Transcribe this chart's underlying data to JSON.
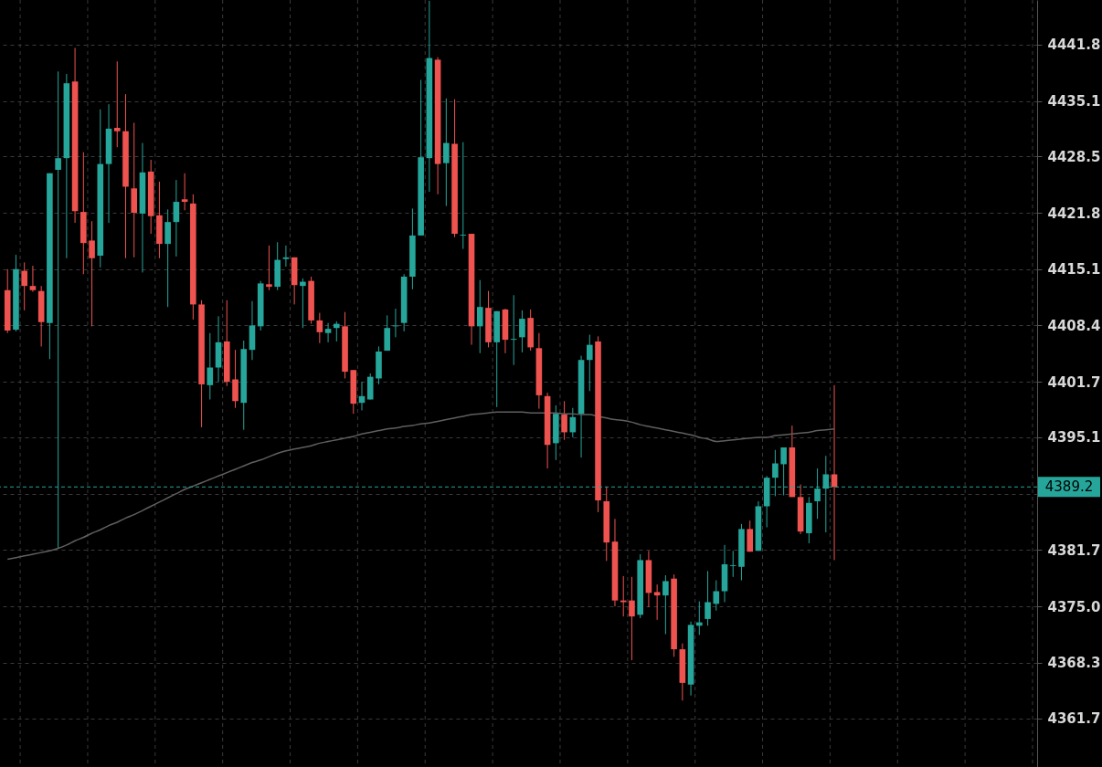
{
  "chart_data": {
    "type": "candlestick",
    "categories": [
      null,
      null,
      null,
      null,
      null,
      null,
      null,
      null,
      null,
      null,
      null,
      null,
      null,
      null,
      null,
      null,
      null,
      null,
      null,
      null,
      null,
      null,
      null,
      null,
      null,
      null,
      null,
      null,
      null,
      null,
      null,
      null,
      null,
      null,
      null,
      null,
      null,
      null,
      null,
      null,
      null,
      null,
      null,
      null,
      null,
      null,
      null,
      null,
      null,
      null,
      null,
      null,
      null,
      null,
      null,
      null,
      null,
      null,
      null,
      null,
      null,
      null,
      null,
      null,
      null,
      null,
      null,
      null,
      null,
      null,
      null,
      null,
      null,
      null,
      null,
      null,
      null,
      null,
      null,
      null,
      null,
      null,
      null,
      null,
      null,
      null,
      null,
      null,
      null,
      null,
      null,
      null,
      null,
      null,
      null,
      null,
      null,
      null,
      null
    ],
    "ohlc": [
      [
        4412.6,
        4415.1,
        4407.5,
        4407.8
      ],
      [
        4407.9,
        4416.8,
        4407.7,
        4415.1
      ],
      [
        4414.9,
        4415.9,
        4410.2,
        4413.1
      ],
      [
        4413.1,
        4415.5,
        4412.4,
        4412.6
      ],
      [
        4412.5,
        4413.1,
        4405.9,
        4408.8
      ],
      [
        4408.7,
        4426.5,
        4404.4,
        4426.5
      ],
      [
        4426.9,
        4438.6,
        4381.9,
        4428.3
      ],
      [
        4428.3,
        4438.3,
        4416.4,
        4437.2
      ],
      [
        4437.4,
        4441.4,
        4420.6,
        4422.0
      ],
      [
        4421.9,
        4429.0,
        4414.5,
        4418.2
      ],
      [
        4418.5,
        4420.8,
        4408.3,
        4416.4
      ],
      [
        4416.7,
        4434.1,
        4415.3,
        4427.6
      ],
      [
        4427.6,
        4434.7,
        4420.6,
        4431.8
      ],
      [
        4431.9,
        4439.8,
        4429.6,
        4431.5
      ],
      [
        4431.5,
        4435.9,
        4416.4,
        4424.9
      ],
      [
        4424.7,
        4432.5,
        4416.5,
        4421.8
      ],
      [
        4421.7,
        4430.1,
        4414.7,
        4426.6
      ],
      [
        4426.7,
        4428.1,
        4419.3,
        4421.4
      ],
      [
        4421.5,
        4425.5,
        4416.4,
        4418.1
      ],
      [
        4418.1,
        4422.2,
        4410.6,
        4420.7
      ],
      [
        4420.7,
        4425.7,
        4416.6,
        4423.1
      ],
      [
        4423.4,
        4426.5,
        4422.1,
        4423.1
      ],
      [
        4422.9,
        4424.0,
        4409.1,
        4410.9
      ],
      [
        4410.9,
        4411.4,
        4396.3,
        4401.4
      ],
      [
        4401.3,
        4407.5,
        4399.6,
        4403.4
      ],
      [
        4403.4,
        4409.5,
        4401.7,
        4406.4
      ],
      [
        4406.5,
        4411.4,
        4401.2,
        4401.7
      ],
      [
        4402.0,
        4405.5,
        4398.6,
        4399.4
      ],
      [
        4399.2,
        4406.6,
        4396.0,
        4405.6
      ],
      [
        4405.5,
        4411.3,
        4404.3,
        4408.4
      ],
      [
        4408.3,
        4413.7,
        4407.8,
        4413.4
      ],
      [
        4413.3,
        4417.9,
        4412.6,
        4413.0
      ],
      [
        4413.0,
        4418.3,
        4412.6,
        4416.2
      ],
      [
        4416.3,
        4417.9,
        4415.4,
        4416.5
      ],
      [
        4416.5,
        4416.5,
        4410.9,
        4413.2
      ],
      [
        4413.1,
        4414.0,
        4408.1,
        4413.6
      ],
      [
        4413.7,
        4414.2,
        4408.6,
        4409.0
      ],
      [
        4409.0,
        4409.9,
        4406.3,
        4407.6
      ],
      [
        4407.5,
        4408.7,
        4406.4,
        4408.0
      ],
      [
        4408.1,
        4408.9,
        4406.5,
        4408.6
      ],
      [
        4408.3,
        4410.0,
        4402.1,
        4402.9
      ],
      [
        4403.1,
        4403.1,
        4397.9,
        4399.1
      ],
      [
        4399.2,
        4401.7,
        4398.3,
        4400.0
      ],
      [
        4399.6,
        4402.7,
        4399.6,
        4402.3
      ],
      [
        4402.1,
        4405.9,
        4401.4,
        4405.3
      ],
      [
        4405.4,
        4409.6,
        4405.4,
        4408.1
      ],
      [
        4408.3,
        4410.4,
        4407.0,
        4408.4
      ],
      [
        4408.7,
        4414.5,
        4407.7,
        4414.2
      ],
      [
        4414.2,
        4422.3,
        4412.7,
        4419.1
      ],
      [
        4419.1,
        4437.6,
        4419.1,
        4428.4
      ],
      [
        4428.3,
        4447.0,
        4424.3,
        4440.2
      ],
      [
        4440.0,
        4440.3,
        4424.0,
        4427.6
      ],
      [
        4427.7,
        4435.4,
        4422.6,
        4430.1
      ],
      [
        4430.0,
        4435.3,
        4418.9,
        4419.3
      ],
      [
        4419.1,
        4430.2,
        4417.5,
        4419.2
      ],
      [
        4419.3,
        4419.3,
        4406.1,
        4408.3
      ],
      [
        4408.3,
        4413.8,
        4405.1,
        4410.6
      ],
      [
        4410.5,
        4412.5,
        4405.8,
        4406.4
      ],
      [
        4406.4,
        4410.1,
        4398.7,
        4410.1
      ],
      [
        4410.3,
        4410.4,
        4405.1,
        4406.7
      ],
      [
        4406.7,
        4412.0,
        4403.7,
        4406.8
      ],
      [
        4407.0,
        4410.2,
        4405.2,
        4409.2
      ],
      [
        4409.3,
        4410.3,
        4405.4,
        4405.8
      ],
      [
        4405.7,
        4407.5,
        4398.5,
        4400.1
      ],
      [
        4400.0,
        4400.4,
        4391.4,
        4394.2
      ],
      [
        4394.4,
        4398.9,
        4392.4,
        4397.9
      ],
      [
        4397.8,
        4399.4,
        4394.8,
        4395.7
      ],
      [
        4395.7,
        4398.6,
        4395.1,
        4397.5
      ],
      [
        4397.9,
        4404.8,
        4392.7,
        4404.3
      ],
      [
        4404.3,
        4407.3,
        4400.6,
        4406.1
      ],
      [
        4406.5,
        4407.1,
        4386.2,
        4387.6
      ],
      [
        4387.5,
        4389.2,
        4380.4,
        4382.6
      ],
      [
        4382.7,
        4385.4,
        4375.0,
        4375.7
      ],
      [
        4375.7,
        4378.6,
        4373.8,
        4375.5
      ],
      [
        4375.7,
        4378.5,
        4368.6,
        4373.8
      ],
      [
        4374.0,
        4381.2,
        4373.6,
        4380.5
      ],
      [
        4380.5,
        4381.6,
        4374.9,
        4376.6
      ],
      [
        4376.7,
        4377.6,
        4373.4,
        4376.3
      ],
      [
        4376.3,
        4378.7,
        4371.7,
        4378.0
      ],
      [
        4378.3,
        4378.8,
        4369.0,
        4369.9
      ],
      [
        4369.9,
        4370.6,
        4363.8,
        4365.9
      ],
      [
        4365.7,
        4373.2,
        4364.4,
        4372.8
      ],
      [
        4372.7,
        4375.6,
        4371.6,
        4373.1
      ],
      [
        4373.5,
        4379.2,
        4372.7,
        4375.5
      ],
      [
        4375.3,
        4378.1,
        4374.5,
        4376.8
      ],
      [
        4376.8,
        4382.3,
        4375.5,
        4380.0
      ],
      [
        4379.8,
        4381.6,
        4378.5,
        4379.9
      ],
      [
        4379.7,
        4384.8,
        4378.1,
        4384.2
      ],
      [
        4384.2,
        4385.2,
        4381.5,
        4381.5
      ],
      [
        4381.6,
        4387.5,
        4381.6,
        4386.9
      ],
      [
        4386.9,
        4390.5,
        4384.4,
        4390.3
      ],
      [
        4390.3,
        4393.6,
        4388.1,
        4392.0
      ],
      [
        4391.9,
        4393.9,
        4388.2,
        4393.9
      ],
      [
        4393.9,
        4396.5,
        4388.0,
        4388.0
      ],
      [
        4388.0,
        4389.5,
        4383.6,
        4383.9
      ],
      [
        4383.7,
        4388.0,
        4382.5,
        4387.3
      ],
      [
        4387.5,
        4391.4,
        4385.4,
        4389.0
      ],
      [
        4389.0,
        4392.9,
        4383.8,
        4390.7
      ],
      [
        4390.7,
        4401.3,
        4380.5,
        4389.2
      ]
    ],
    "colors": [
      "#ef5350",
      "#26a69a",
      "#ef5350",
      "#ef5350",
      "#ef5350",
      "#26a69a",
      "#26a69a",
      "#26a69a",
      "#ef5350",
      "#ef5350",
      "#ef5350",
      "#26a69a",
      "#26a69a",
      "#ef5350",
      "#ef5350",
      "#ef5350",
      "#26a69a",
      "#ef5350",
      "#ef5350",
      "#26a69a",
      "#26a69a",
      "#ef5350",
      "#ef5350",
      "#ef5350",
      "#26a69a",
      "#26a69a",
      "#ef5350",
      "#ef5350",
      "#26a69a",
      "#26a69a",
      "#26a69a",
      "#ef5350",
      "#26a69a",
      "#26a69a",
      "#ef5350",
      "#26a69a",
      "#ef5350",
      "#ef5350",
      "#26a69a",
      "#26a69a",
      "#ef5350",
      "#ef5350",
      "#26a69a",
      "#26a69a",
      "#26a69a",
      "#26a69a",
      "#26a69a",
      "#26a69a",
      "#26a69a",
      "#26a69a",
      "#26a69a",
      "#ef5350",
      "#26a69a",
      "#ef5350",
      "#26a69a",
      "#ef5350",
      "#26a69a",
      "#ef5350",
      "#26a69a",
      "#ef5350",
      "#26a69a",
      "#26a69a",
      "#ef5350",
      "#ef5350",
      "#ef5350",
      "#26a69a",
      "#ef5350",
      "#26a69a",
      "#26a69a",
      "#26a69a",
      "#ef5350",
      "#ef5350",
      "#ef5350",
      "#ef5350",
      "#ef5350",
      "#26a69a",
      "#ef5350",
      "#ef5350",
      "#26a69a",
      "#ef5350",
      "#ef5350",
      "#26a69a",
      "#26a69a",
      "#26a69a",
      "#26a69a",
      "#26a69a",
      "#26a69a",
      "#26a69a",
      "#ef5350",
      "#26a69a",
      "#26a69a",
      "#26a69a",
      "#26a69a",
      "#ef5350",
      "#ef5350",
      "#26a69a",
      "#26a69a",
      "#26a69a",
      "#ef5350"
    ],
    "series": [
      {
        "type": "line",
        "color": "#5f5f5f",
        "values": [
          4380.6,
          4380.8,
          4381.0,
          4381.2,
          4381.4,
          4381.6,
          4381.9,
          4382.3,
          4382.8,
          4383.2,
          4383.7,
          4384.1,
          4384.6,
          4385.0,
          4385.5,
          4385.9,
          4386.4,
          4386.9,
          4387.4,
          4387.9,
          4388.4,
          4388.9,
          4389.3,
          4389.7,
          4390.1,
          4390.5,
          4390.9,
          4391.3,
          4391.7,
          4392.1,
          4392.4,
          4392.8,
          4393.2,
          4393.5,
          4393.7,
          4393.9,
          4394.1,
          4394.4,
          4394.6,
          4394.8,
          4395.0,
          4395.2,
          4395.5,
          4395.7,
          4395.9,
          4396.1,
          4396.2,
          4396.4,
          4396.5,
          4396.7,
          4396.8,
          4397.0,
          4397.2,
          4397.4,
          4397.6,
          4397.8,
          4397.9,
          4398.0,
          4398.1,
          4398.1,
          4398.1,
          4398.1,
          4398.0,
          4398.0,
          4398.0,
          4398.0,
          4397.9,
          4397.9,
          4397.8,
          4397.8,
          4397.6,
          4397.4,
          4397.2,
          4397.1,
          4396.9,
          4396.6,
          4396.4,
          4396.2,
          4396.0,
          4395.8,
          4395.6,
          4395.4,
          4395.1,
          4394.9,
          4394.6,
          4394.7,
          4394.8,
          4394.9,
          4395.0,
          4395.1,
          4395.1,
          4395.3,
          4395.4,
          4395.5,
          4395.6,
          4395.7,
          4395.9,
          4396.0,
          4396.1
        ]
      }
    ],
    "ylim": [
      4355.9,
      4447.1
    ],
    "yticks": [
      4441.8,
      4435.1,
      4428.5,
      4421.8,
      4415.1,
      4408.4,
      4401.7,
      4395.1,
      {
        "value": 4388.4,
        "label": null
      },
      4381.7,
      {
        "value": 4375.0,
        "label": "4375.0"
      },
      4368.3,
      4361.7
    ],
    "ref_lines": [
      {
        "axis": "y",
        "value": 4389.2,
        "label": "4389.2",
        "color": "#26a69a",
        "line_style": "dashed"
      }
    ],
    "grid": true
  }
}
